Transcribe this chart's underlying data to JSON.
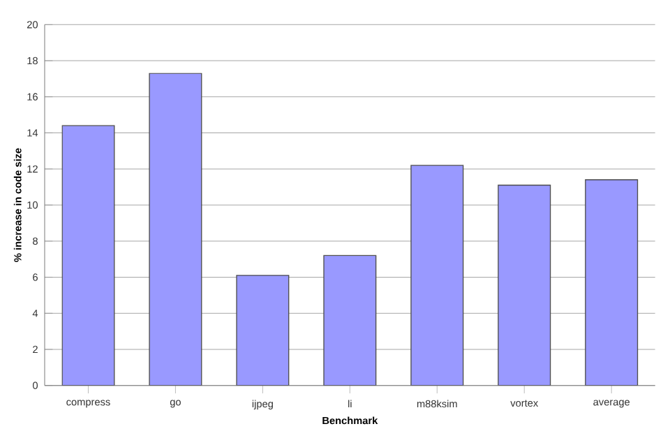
{
  "chart_data": {
    "type": "bar",
    "xlabel": "Benchmark",
    "ylabel": "% increase in code size",
    "categories": [
      "compress",
      "go",
      "ijpeg",
      "li",
      "m88ksim",
      "vortex",
      "average"
    ],
    "values": [
      14.4,
      17.3,
      6.1,
      7.2,
      12.2,
      11.1,
      11.4
    ],
    "color": "#9999ff",
    "ylim": [
      0,
      20
    ],
    "yticks": [
      0,
      2,
      4,
      6,
      8,
      10,
      12,
      14,
      16,
      18,
      20
    ],
    "grid": "y"
  }
}
